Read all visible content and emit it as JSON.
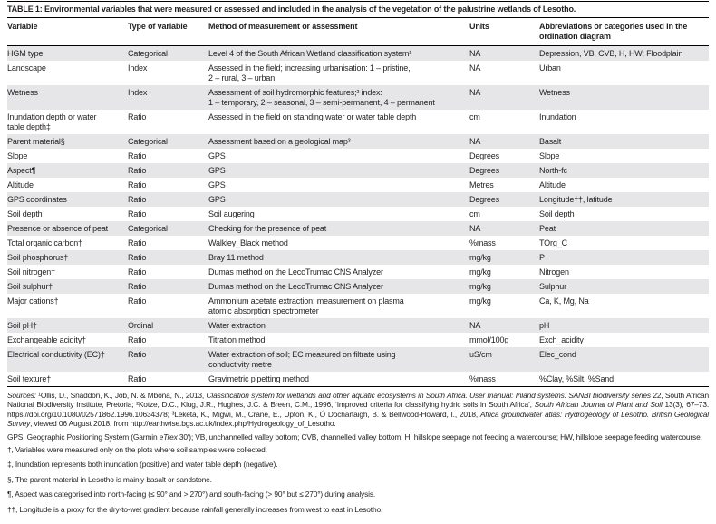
{
  "title": "TABLE 1: Environmental variables that were measured or assessed and included in the analysis of the vegetation of the palustrine wetlands of Lesotho.",
  "table": {
    "columns": [
      "Variable",
      "Type of variable",
      "Method of measurement or assessment",
      "Units",
      "Abbreviations or categories used in the\nordination diagram"
    ],
    "rows": [
      {
        "variable": "HGM type",
        "type": "Categorical",
        "method": "Level 4 of the South African Wetland classification system¹",
        "units": "NA",
        "abbrev": "Depression, VB, CVB, H, HW; Floodplain"
      },
      {
        "variable": "Landscape",
        "type": "Index",
        "method": "Assessed in the field; increasing urbanisation: 1 – pristine,\n2 – rural, 3 – urban",
        "units": "NA",
        "abbrev": "Urban"
      },
      {
        "variable": "Wetness",
        "type": "Index",
        "method": "Assessment of soil hydromorphic features;² index:\n1 – temporary, 2 – seasonal, 3 – semi-permanent, 4 – permanent",
        "units": "NA",
        "abbrev": "Wetness"
      },
      {
        "variable": "Inundation depth or water\ntable depth‡",
        "type": "Ratio",
        "method": "Assessed in the field on standing water or water table depth",
        "units": "cm",
        "abbrev": "Inundation"
      },
      {
        "variable": "Parent material§",
        "type": "Categorical",
        "method": "Assessment based on a geological map³",
        "units": "NA",
        "abbrev": "Basalt"
      },
      {
        "variable": "Slope",
        "type": "Ratio",
        "method": "GPS",
        "units": "Degrees",
        "abbrev": "Slope"
      },
      {
        "variable": "Aspect¶",
        "type": "Ratio",
        "method": "GPS",
        "units": "Degrees",
        "abbrev": "North-fc"
      },
      {
        "variable": "Altitude",
        "type": "Ratio",
        "method": "GPS",
        "units": "Metres",
        "abbrev": "Altitude"
      },
      {
        "variable": "GPS coordinates",
        "type": "Ratio",
        "method": "GPS",
        "units": "Degrees",
        "abbrev": "Longitude††, latitude"
      },
      {
        "variable": "Soil depth",
        "type": "Ratio",
        "method": "Soil augering",
        "units": "cm",
        "abbrev": "Soil depth"
      },
      {
        "variable": "Presence or absence of peat",
        "type": "Categorical",
        "method": "Checking for the presence of peat",
        "units": "NA",
        "abbrev": "Peat"
      },
      {
        "variable": "Total organic carbon†",
        "type": "Ratio",
        "method": "Walkley_Black method",
        "units": "%mass",
        "abbrev": "TOrg_C"
      },
      {
        "variable": "Soil phosphorus†",
        "type": "Ratio",
        "method": "Bray 11 method",
        "units": "mg/kg",
        "abbrev": "P"
      },
      {
        "variable": "Soil nitrogen†",
        "type": "Ratio",
        "method": "Dumas method on the LecoTrumac CNS Analyzer",
        "units": "mg/kg",
        "abbrev": "Nitrogen"
      },
      {
        "variable": "Soil sulphur†",
        "type": "Ratio",
        "method": "Dumas method on the LecoTrumac CNS Analyzer",
        "units": "mg/kg",
        "abbrev": "Sulphur"
      },
      {
        "variable": "Major cations†",
        "type": "Ratio",
        "method": "Ammonium acetate extraction; measurement on plasma\natomic absorption spectrometer",
        "units": "mg/kg",
        "abbrev": "Ca, K, Mg, Na"
      },
      {
        "variable": "Soil pH†",
        "type": "Ordinal",
        "method": "Water extraction",
        "units": "NA",
        "abbrev": "pH"
      },
      {
        "variable": "Exchangeable acidity†",
        "type": "Ratio",
        "method": "Titration method",
        "units": "mmol/100g",
        "abbrev": "Exch_acidity"
      },
      {
        "variable": "Electrical conductivity (EC)†",
        "type": "Ratio",
        "method": "Water extraction of soil; EC measured on filtrate using\nconductivity metre",
        "units": "uS/cm",
        "abbrev": "Elec_cond"
      },
      {
        "variable": "Soil texture†",
        "type": "Ratio",
        "method": "Gravimetric pipetting method",
        "units": "%mass",
        "abbrev": "%Clay, %Silt, %Sand"
      }
    ]
  },
  "footnotes": {
    "sources": [
      {
        "t": "Sources: ",
        "i": true
      },
      {
        "t": "¹Ollis, D., Snaddon, K., Job, N. & Mbona, N., 2013, ",
        "i": false
      },
      {
        "t": "Classification system for wetlands and other aquatic ecosystems in South Africa. User manual: Inland systems. SANBI biodiversity series ",
        "i": true
      },
      {
        "t": "22, South African National Biodiversity Institute, Pretoria; ²Kotze, D.C., Klug, J.R., Hughes, J.C. & Breen, C.M., 1996, ‘Improved criteria for classifying hydric soils in South Africa’, ",
        "i": false
      },
      {
        "t": "South African Journal of Plant and Soil ",
        "i": true
      },
      {
        "t": "13(3), 67–73. https://doi.org/10.1080/02571862.1996.10634378; ³Leketa, K., Migwi, M., Crane, E., Upton, K., Ó Dochartaigh, B. & Bellwood-Howard, I., 2018, ",
        "i": false
      },
      {
        "t": "Africa groundwater atlas: Hydrogeology of Lesotho. British Geological Survey",
        "i": true
      },
      {
        "t": ", viewed 06 August 2018, from http://earthwise.bgs.ac.uk/index.php/Hydrogeology_of_Lesotho.",
        "i": false
      }
    ],
    "abbreviations": [
      {
        "t": "GPS, Geographic Positioning System (Garmin ",
        "i": false
      },
      {
        "t": "eTrex",
        "i": true
      },
      {
        "t": " 30′); VB, unchannelled valley bottom; CVB, channelled valley bottom; H, hillslope seepage not feeding a watercourse; HW, hillslope seepage feeding watercourse.",
        "i": false
      }
    ],
    "notes": [
      "†, Variables were measured only on the plots where soil samples were collected.",
      "‡, Inundation represents both inundation (positive) and water table depth (negative).",
      "§, The parent material in Lesotho is mainly basalt or sandstone.",
      "¶, Aspect was categorised into north-facing (≤ 90° and > 270°) and south-facing (> 90° but ≤ 270°) during analysis.",
      "††, Longitude is a proxy for the dry-to-wet gradient because rainfall generally increases from west to east in Lesotho."
    ]
  }
}
